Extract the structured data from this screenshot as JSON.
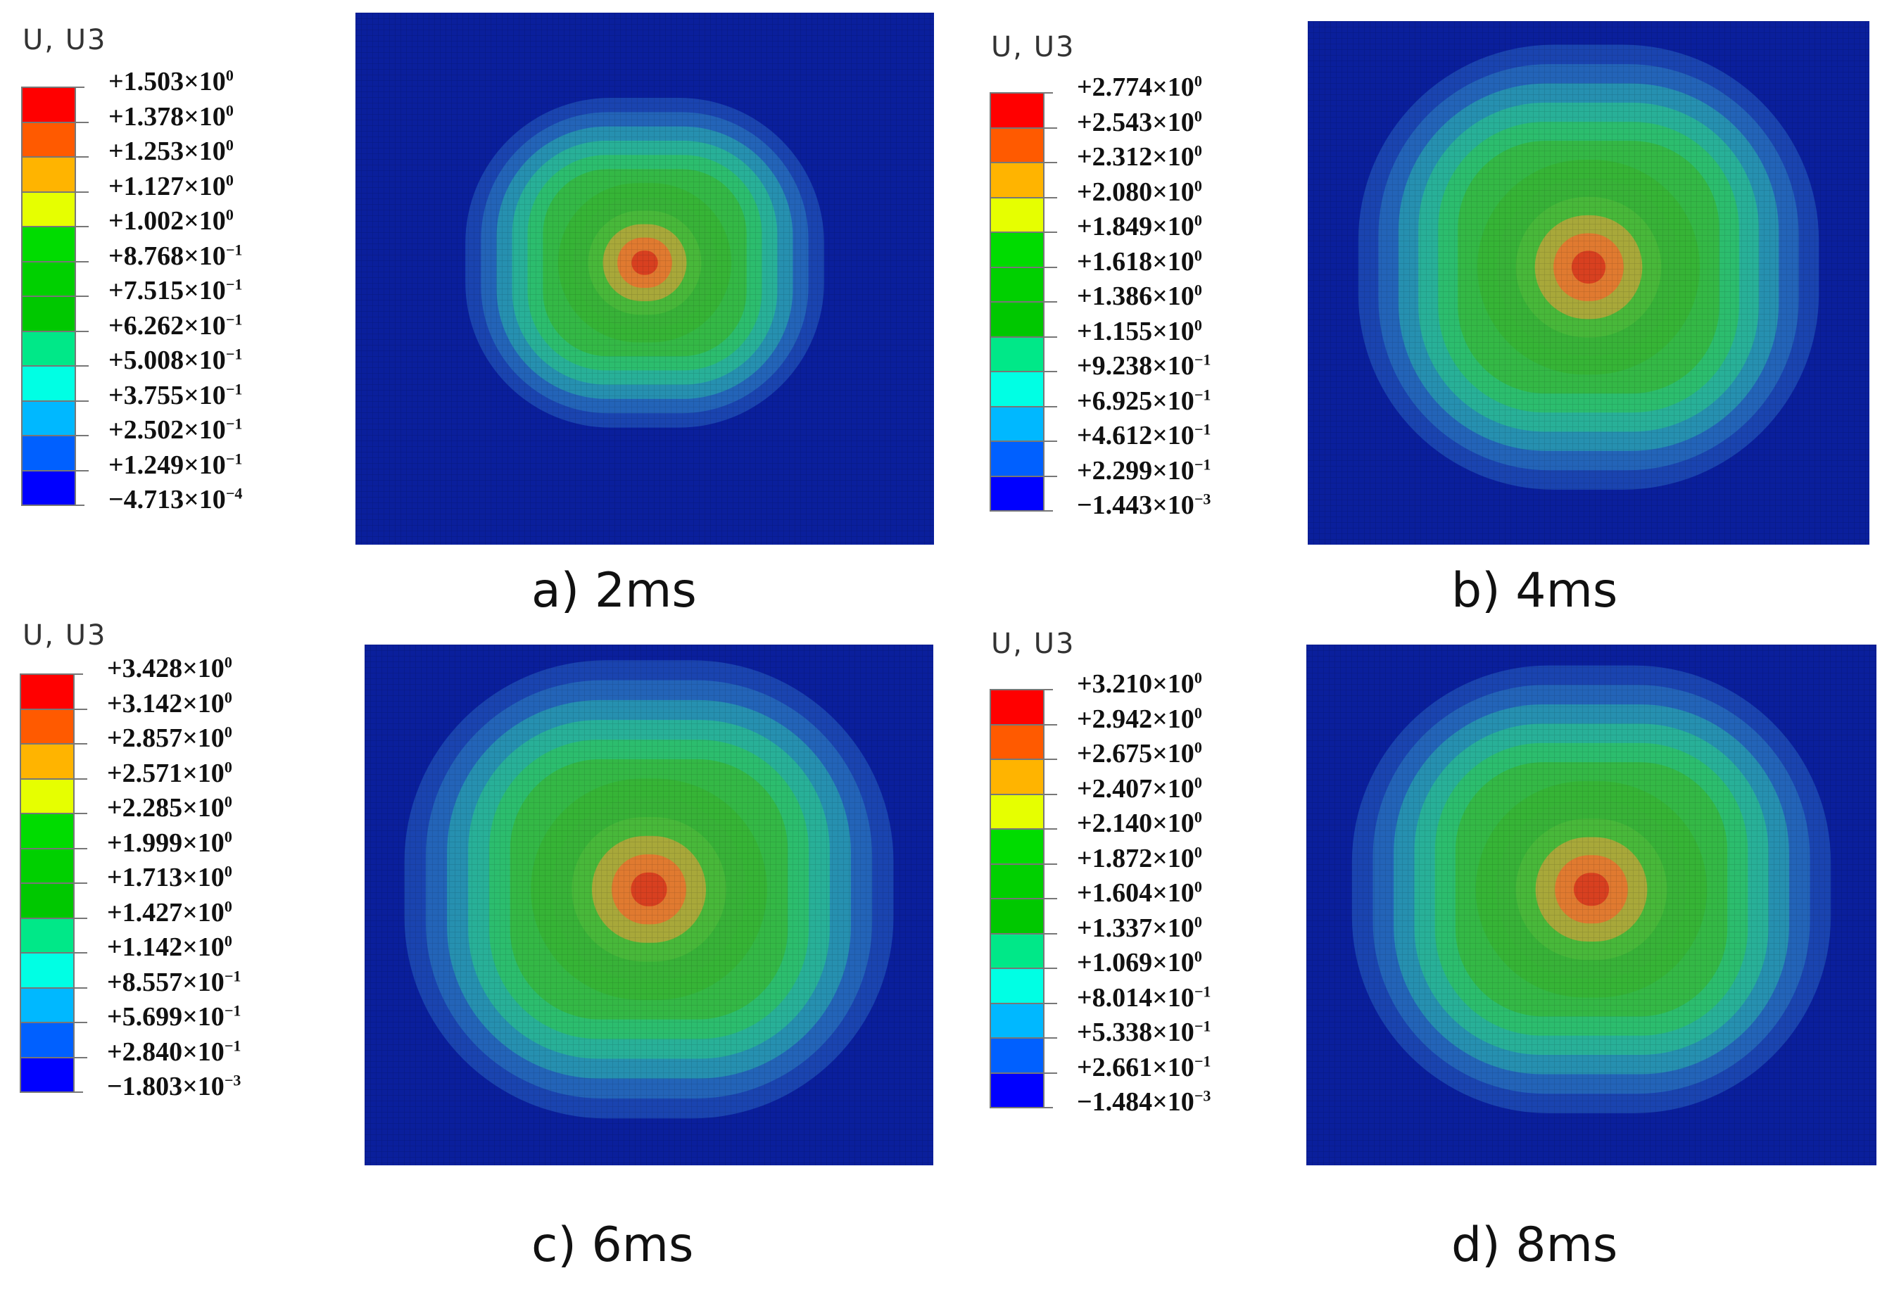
{
  "chart_data": [
    {
      "type": "heatmap",
      "panel": "a",
      "legend_title": "U, U3",
      "caption": "a) 2ms",
      "legend_values": [
        {
          "mant": "+1.503",
          "exp": "0"
        },
        {
          "mant": "+1.378",
          "exp": "0"
        },
        {
          "mant": "+1.253",
          "exp": "0"
        },
        {
          "mant": "+1.127",
          "exp": "0"
        },
        {
          "mant": "+1.002",
          "exp": "0"
        },
        {
          "mant": "+8.768",
          "exp": "−1"
        },
        {
          "mant": "+7.515",
          "exp": "−1"
        },
        {
          "mant": "+6.262",
          "exp": "−1"
        },
        {
          "mant": "+5.008",
          "exp": "−1"
        },
        {
          "mant": "+3.755",
          "exp": "−1"
        },
        {
          "mant": "+2.502",
          "exp": "−1"
        },
        {
          "mant": "+1.249",
          "exp": "−1"
        },
        {
          "mant": "−4.713",
          "exp": "−4"
        }
      ],
      "contour_levels": 12,
      "peak_level": 11
    },
    {
      "type": "heatmap",
      "panel": "b",
      "legend_title": "U, U3",
      "caption": "b) 4ms",
      "legend_values": [
        {
          "mant": "+2.774",
          "exp": "0"
        },
        {
          "mant": "+2.543",
          "exp": "0"
        },
        {
          "mant": "+2.312",
          "exp": "0"
        },
        {
          "mant": "+2.080",
          "exp": "0"
        },
        {
          "mant": "+1.849",
          "exp": "0"
        },
        {
          "mant": "+1.618",
          "exp": "0"
        },
        {
          "mant": "+1.386",
          "exp": "0"
        },
        {
          "mant": "+1.155",
          "exp": "0"
        },
        {
          "mant": "+9.238",
          "exp": "−1"
        },
        {
          "mant": "+6.925",
          "exp": "−1"
        },
        {
          "mant": "+4.612",
          "exp": "−1"
        },
        {
          "mant": "+2.299",
          "exp": "−1"
        },
        {
          "mant": "−1.443",
          "exp": "−3"
        }
      ],
      "contour_levels": 12,
      "peak_level": 11
    },
    {
      "type": "heatmap",
      "panel": "c",
      "legend_title": "U, U3",
      "caption": "c) 6ms",
      "legend_values": [
        {
          "mant": "+3.428",
          "exp": "0"
        },
        {
          "mant": "+3.142",
          "exp": "0"
        },
        {
          "mant": "+2.857",
          "exp": "0"
        },
        {
          "mant": "+2.571",
          "exp": "0"
        },
        {
          "mant": "+2.285",
          "exp": "0"
        },
        {
          "mant": "+1.999",
          "exp": "0"
        },
        {
          "mant": "+1.713",
          "exp": "0"
        },
        {
          "mant": "+1.427",
          "exp": "0"
        },
        {
          "mant": "+1.142",
          "exp": "0"
        },
        {
          "mant": "+8.557",
          "exp": "−1"
        },
        {
          "mant": "+5.699",
          "exp": "−1"
        },
        {
          "mant": "+2.840",
          "exp": "−1"
        },
        {
          "mant": "−1.803",
          "exp": "−3"
        }
      ],
      "contour_levels": 12,
      "peak_level": 11
    },
    {
      "type": "heatmap",
      "panel": "d",
      "legend_title": "U, U3",
      "caption": "d) 8ms",
      "legend_values": [
        {
          "mant": "+3.210",
          "exp": "0"
        },
        {
          "mant": "+2.942",
          "exp": "0"
        },
        {
          "mant": "+2.675",
          "exp": "0"
        },
        {
          "mant": "+2.407",
          "exp": "0"
        },
        {
          "mant": "+2.140",
          "exp": "0"
        },
        {
          "mant": "+1.872",
          "exp": "0"
        },
        {
          "mant": "+1.604",
          "exp": "0"
        },
        {
          "mant": "+1.337",
          "exp": "0"
        },
        {
          "mant": "+1.069",
          "exp": "0"
        },
        {
          "mant": "+8.014",
          "exp": "−1"
        },
        {
          "mant": "+5.338",
          "exp": "−1"
        },
        {
          "mant": "+2.661",
          "exp": "−1"
        },
        {
          "mant": "−1.484",
          "exp": "−3"
        }
      ],
      "contour_levels": 12,
      "peak_level": 11
    }
  ],
  "colors": {
    "legend_bands_top_to_bottom": [
      "#ff0000",
      "#ff5a00",
      "#ffb400",
      "#e6ff00",
      "#00dc00",
      "#00d000",
      "#00c800",
      "#00e888",
      "#00ffe4",
      "#00b8ff",
      "#0060ff",
      "#0000ff"
    ],
    "plot_background": "#0a1f9c",
    "contour_levels_outer_to_inner": [
      "#0a1f9c",
      "#1a44b0",
      "#2364b8",
      "#2690b0",
      "#28b098",
      "#2cbd6e",
      "#34b846",
      "#36b436",
      "#38b238",
      "#48b83a",
      "#a8a83a",
      "#e07a30",
      "#d84020"
    ]
  }
}
